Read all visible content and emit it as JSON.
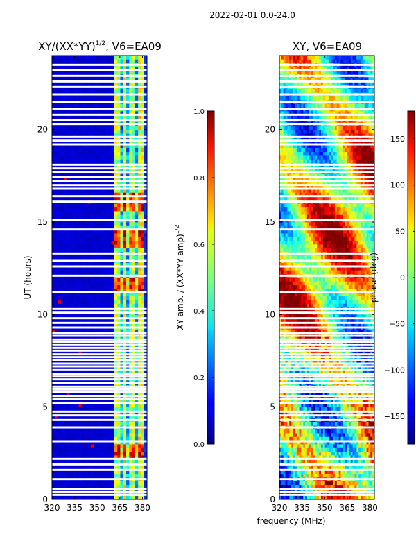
{
  "figure_title": "2022-02-01 0.0-24.0",
  "shared_xlabel": "frequency (MHz)",
  "chart_data": [
    {
      "type": "heatmap",
      "title": "XY/(XX*YY)",
      "title_exponent": "1/2",
      "title_suffix": ", V6=EA09",
      "xlabel": "",
      "ylabel": "UT (hours)",
      "xlim": [
        320,
        383
      ],
      "ylim": [
        0,
        24
      ],
      "xticks": [
        320,
        335,
        350,
        365,
        380
      ],
      "yticks": [
        0,
        5,
        10,
        15,
        20
      ],
      "colorbar": {
        "label": "XY amp. / (XX*YY amp)",
        "label_exponent": "1/2",
        "range": [
          0.0,
          1.0
        ],
        "ticks": [
          "0.0",
          "0.2",
          "0.4",
          "0.6",
          "0.8",
          "1.0"
        ],
        "tick_values": [
          0.0,
          0.2,
          0.4,
          0.6,
          0.8,
          1.0
        ],
        "colormap": "jet"
      },
      "value_profile_note": "low (~0.05) below 360 MHz, elevated 0.3-0.9 between 361 and 383 MHz, peaks near 14 h and 16 h",
      "band_levels": [
        {
          "freq": [
            320,
            360
          ],
          "level": 0.06
        },
        {
          "freq": [
            361,
            365
          ],
          "level": 0.55
        },
        {
          "freq": [
            365,
            367
          ],
          "level": 0.3
        },
        {
          "freq": [
            367,
            370
          ],
          "level": 0.6
        },
        {
          "freq": [
            370,
            372
          ],
          "level": 0.3
        },
        {
          "freq": [
            372,
            376
          ],
          "level": 0.55
        },
        {
          "freq": [
            376,
            378
          ],
          "level": 0.3
        },
        {
          "freq": [
            378,
            381
          ],
          "level": 0.6
        },
        {
          "freq": [
            381,
            383
          ],
          "level": 0.15
        }
      ],
      "hot_times": [
        2.5,
        14.0,
        16.0,
        11.5
      ]
    },
    {
      "type": "heatmap",
      "title": "XY, V6=EA09",
      "xlabel": "frequency (MHz)",
      "ylabel": "",
      "xlim": [
        320,
        383
      ],
      "ylim": [
        0,
        24
      ],
      "xticks": [
        320,
        335,
        350,
        365,
        380
      ],
      "yticks": [
        0,
        5,
        10,
        15,
        20
      ],
      "colorbar": {
        "label": "phase (deg)",
        "range": [
          -180,
          180
        ],
        "ticks": [
          "150",
          "100",
          "50",
          "0",
          "−50",
          "−100",
          "−150"
        ],
        "tick_values": [
          150,
          100,
          50,
          0,
          -50,
          -100,
          -150
        ],
        "colormap": "jet"
      },
      "value_profile_note": "phase varies smoothly with frequency and time, mostly between -100 and +150 deg"
    }
  ],
  "flagged_hours": [
    0.25,
    0.4,
    0.55,
    1.1,
    1.6,
    1.9,
    2.2,
    3.15,
    3.9,
    4.3,
    4.55,
    4.75,
    5.2,
    5.45,
    5.6,
    5.8,
    5.95,
    6.1,
    6.3,
    6.5,
    6.65,
    6.8,
    7.0,
    7.2,
    7.35,
    7.55,
    7.7,
    7.85,
    8.05,
    8.2,
    8.35,
    8.5,
    8.65,
    8.85,
    9.0,
    9.3,
    9.55,
    9.8,
    10.1,
    10.3,
    11.2,
    12.1,
    12.6,
    12.9,
    13.3,
    14.6,
    15.1,
    16.1,
    16.4,
    16.8,
    17.0,
    17.2,
    17.45,
    17.7,
    17.9,
    18.1,
    19.2,
    19.4,
    19.6,
    20.3,
    20.5,
    20.8,
    21.1,
    21.5,
    21.9,
    22.3,
    22.6,
    22.9,
    23.2,
    23.5
  ]
}
